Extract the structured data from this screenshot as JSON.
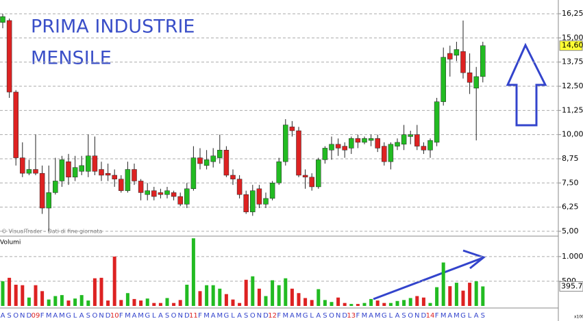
{
  "chart_data": {
    "type": "candlestick",
    "title": "PRIMA INDUSTRIE",
    "subtitle": "MENSILE",
    "source": "© VisualTrader - Dati di fine giornata",
    "categories": [
      "A",
      "S",
      "O",
      "N",
      "D",
      "09",
      "F",
      "M",
      "A",
      "M",
      "G",
      "L",
      "A",
      "S",
      "O",
      "N",
      "D",
      "10",
      "F",
      "M",
      "A",
      "M",
      "G",
      "L",
      "A",
      "S",
      "O",
      "N",
      "D",
      "11",
      "F",
      "M",
      "A",
      "M",
      "G",
      "L",
      "A",
      "S",
      "O",
      "N",
      "D",
      "12",
      "F",
      "M",
      "A",
      "M",
      "G",
      "L",
      "A",
      "S",
      "O",
      "N",
      "D",
      "13",
      "F",
      "M",
      "A",
      "M",
      "G",
      "L",
      "A",
      "S",
      "O",
      "N",
      "D",
      "14",
      "F",
      "M",
      "A",
      "M",
      "G",
      "L",
      "A",
      "S"
    ],
    "open": [
      15.8,
      15.9,
      12.2,
      8.8,
      8.0,
      8.2,
      8.0,
      6.2,
      7.0,
      7.6,
      8.6,
      7.8,
      8.1,
      8.1,
      8.9,
      8.2,
      8.0,
      7.9,
      7.7,
      7.1,
      8.2,
      7.6,
      6.9,
      7.1,
      7.0,
      6.9,
      7.0,
      6.8,
      6.4,
      7.2,
      8.8,
      8.4,
      8.6,
      8.8,
      9.2,
      7.9,
      7.7,
      6.9,
      6.0,
      7.2,
      6.4,
      6.7,
      7.5,
      8.6,
      10.4,
      10.2,
      7.9,
      7.8,
      7.3,
      8.7,
      9.2,
      9.5,
      9.4,
      9.3,
      9.8,
      9.6,
      9.7,
      9.8,
      9.4,
      8.6,
      9.4,
      9.5,
      9.9,
      10.0,
      9.4,
      9.2,
      9.6,
      11.7,
      14.2,
      14.1,
      14.3,
      13.2,
      12.4,
      13.0
    ],
    "high": [
      16.25,
      16.0,
      12.3,
      9.6,
      8.7,
      10.0,
      8.4,
      8.4,
      8.8,
      8.9,
      9.0,
      8.9,
      8.9,
      10.0,
      9.9,
      8.6,
      8.5,
      8.2,
      7.9,
      8.6,
      8.5,
      7.7,
      7.5,
      7.3,
      7.2,
      7.3,
      7.1,
      7.0,
      7.5,
      9.4,
      9.3,
      9.2,
      9.3,
      10.0,
      9.4,
      8.2,
      7.9,
      7.1,
      7.4,
      7.4,
      7.0,
      7.6,
      8.8,
      10.8,
      10.7,
      10.4,
      8.2,
      8.0,
      8.8,
      9.4,
      9.9,
      9.8,
      9.6,
      9.9,
      10.0,
      9.9,
      10.0,
      10.0,
      9.6,
      9.6,
      9.8,
      10.5,
      10.2,
      10.5,
      9.6,
      9.8,
      11.9,
      14.5,
      14.6,
      14.8,
      15.9,
      14.2,
      13.5,
      14.8
    ],
    "low": [
      15.5,
      11.9,
      8.4,
      7.8,
      7.9,
      7.9,
      5.9,
      5.0,
      6.9,
      7.3,
      7.4,
      7.6,
      7.9,
      7.8,
      7.9,
      7.6,
      7.6,
      7.3,
      7.0,
      7.0,
      7.4,
      6.6,
      6.6,
      6.6,
      6.7,
      6.7,
      6.6,
      6.3,
      6.2,
      7.1,
      8.2,
      8.2,
      8.3,
      8.5,
      7.8,
      7.4,
      6.7,
      5.9,
      5.8,
      6.2,
      6.2,
      6.6,
      7.4,
      8.4,
      9.9,
      7.8,
      7.2,
      7.1,
      7.2,
      8.5,
      8.7,
      8.9,
      8.8,
      9.0,
      9.3,
      9.5,
      9.4,
      9.1,
      8.4,
      8.2,
      9.2,
      9.2,
      9.5,
      9.2,
      9.0,
      8.8,
      9.4,
      11.5,
      13.0,
      13.8,
      12.9,
      12.1,
      9.7,
      12.7
    ],
    "close": [
      16.1,
      12.2,
      8.8,
      8.0,
      8.2,
      8.0,
      6.2,
      7.0,
      7.6,
      8.7,
      7.8,
      8.3,
      8.4,
      8.9,
      8.1,
      7.9,
      7.9,
      7.7,
      7.1,
      8.2,
      7.6,
      7.0,
      7.1,
      6.8,
      6.9,
      7.1,
      6.8,
      6.4,
      7.2,
      8.8,
      8.5,
      8.7,
      8.9,
      9.2,
      7.9,
      7.7,
      6.9,
      6.0,
      7.1,
      6.4,
      6.7,
      7.5,
      8.6,
      10.5,
      10.2,
      7.9,
      7.8,
      7.3,
      8.7,
      9.3,
      9.5,
      9.3,
      9.2,
      9.8,
      9.6,
      9.8,
      9.8,
      9.3,
      8.6,
      9.5,
      9.6,
      10.0,
      10.0,
      9.4,
      9.2,
      9.7,
      11.7,
      14.0,
      13.9,
      14.4,
      13.2,
      12.7,
      13.0,
      14.6
    ],
    "up_color": "#22bb22",
    "down_color": "#dd2222",
    "ylim": [
      4.75,
      16.5
    ],
    "yticks": [
      {
        "value": 5,
        "label": "5,00"
      },
      {
        "value": 6.25,
        "label": "6,25"
      },
      {
        "value": 7.5,
        "label": "7,50"
      },
      {
        "value": 8.75,
        "label": "8,75"
      },
      {
        "value": 10,
        "label": "10,00"
      },
      {
        "value": 11.25,
        "label": "11,25"
      },
      {
        "value": 12.5,
        "label": "12,50"
      },
      {
        "value": 13.75,
        "label": "13,75"
      },
      {
        "value": 15,
        "label": "15,00"
      },
      {
        "value": 16.25,
        "label": "16,25"
      }
    ],
    "last_price_label": "14,60",
    "grid": true,
    "volume": {
      "label": "Volumi",
      "unit": "x100",
      "values": [
        500,
        570,
        430,
        420,
        170,
        420,
        300,
        130,
        200,
        220,
        110,
        150,
        220,
        110,
        560,
        570,
        110,
        1000,
        120,
        260,
        140,
        110,
        150,
        60,
        60,
        160,
        60,
        120,
        430,
        1370,
        300,
        420,
        420,
        350,
        240,
        130,
        60,
        530,
        600,
        350,
        200,
        520,
        420,
        560,
        350,
        260,
        160,
        120,
        340,
        120,
        80,
        170,
        60,
        40,
        40,
        60,
        140,
        110,
        60,
        60,
        100,
        120,
        160,
        200,
        170,
        60,
        380,
        880,
        400,
        470,
        310,
        470,
        500,
        395.7
      ],
      "ylim": [
        0,
        1400
      ],
      "yticks": [
        {
          "value": 500,
          "label": "500"
        },
        {
          "value": 1000,
          "label": "1.000"
        }
      ],
      "last_label": "395.70"
    }
  }
}
